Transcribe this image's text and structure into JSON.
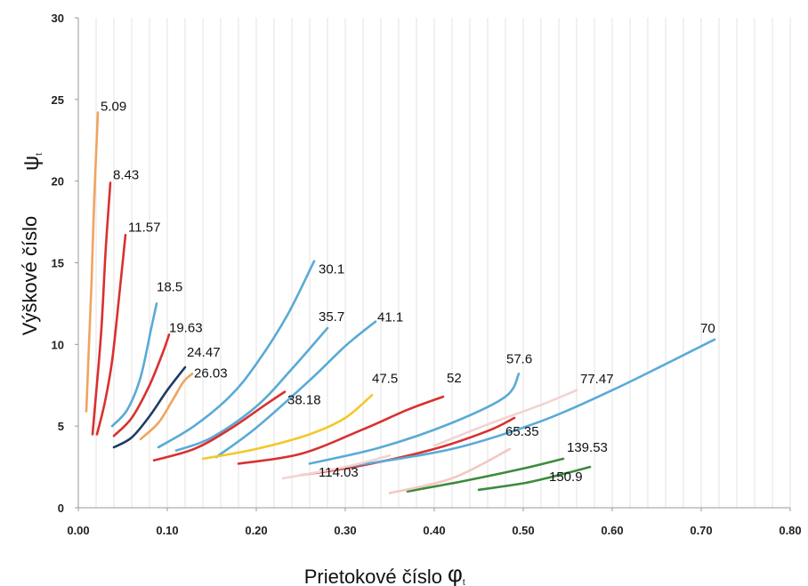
{
  "chart_data": {
    "type": "line",
    "title": "",
    "xlabel": "Prietokové číslo",
    "xlabel_symbol": "φ",
    "xlabel_subscript": "t",
    "ylabel": "Výškové číslo",
    "ylabel_symbol": "ψ",
    "ylabel_subscript": "t",
    "xlim": [
      0,
      0.8
    ],
    "ylim": [
      0,
      30
    ],
    "x_ticks": [
      "0.00",
      "0.10",
      "0.20",
      "0.30",
      "0.40",
      "0.50",
      "0.60",
      "0.70",
      "0.80"
    ],
    "y_ticks": [
      "0",
      "5",
      "10",
      "15",
      "20",
      "25",
      "30"
    ],
    "grid": "vertical",
    "legend": "none",
    "series": [
      {
        "name": "5.09",
        "color": "#f0a460",
        "points": [
          [
            0.009,
            5.9
          ],
          [
            0.012,
            10
          ],
          [
            0.015,
            14
          ],
          [
            0.018,
            19
          ],
          [
            0.022,
            24.2
          ]
        ]
      },
      {
        "name": "8.43",
        "color": "#d93030",
        "points": [
          [
            0.016,
            4.5
          ],
          [
            0.02,
            7
          ],
          [
            0.026,
            11
          ],
          [
            0.031,
            16
          ],
          [
            0.036,
            19.9
          ]
        ]
      },
      {
        "name": "11.57",
        "color": "#d93030",
        "points": [
          [
            0.021,
            4.5
          ],
          [
            0.03,
            6.5
          ],
          [
            0.038,
            9
          ],
          [
            0.046,
            13
          ],
          [
            0.053,
            16.7
          ]
        ]
      },
      {
        "name": "18.5",
        "color": "#5aaad6",
        "points": [
          [
            0.038,
            5
          ],
          [
            0.055,
            6
          ],
          [
            0.07,
            8
          ],
          [
            0.082,
            11
          ],
          [
            0.088,
            12.5
          ]
        ]
      },
      {
        "name": "19.63",
        "color": "#d93030",
        "points": [
          [
            0.04,
            4.4
          ],
          [
            0.06,
            5.5
          ],
          [
            0.08,
            7.5
          ],
          [
            0.095,
            9.5
          ],
          [
            0.102,
            10.6
          ]
        ]
      },
      {
        "name": "24.47",
        "color": "#1e3b63",
        "points": [
          [
            0.04,
            3.7
          ],
          [
            0.06,
            4.3
          ],
          [
            0.08,
            5.6
          ],
          [
            0.1,
            7.2
          ],
          [
            0.12,
            8.6
          ]
        ]
      },
      {
        "name": "26.03",
        "color": "#f0a460",
        "points": [
          [
            0.07,
            4.2
          ],
          [
            0.09,
            5.2
          ],
          [
            0.105,
            6.5
          ],
          [
            0.118,
            7.7
          ],
          [
            0.128,
            8.2
          ]
        ]
      },
      {
        "name": "30.1",
        "color": "#5aaad6",
        "points": [
          [
            0.09,
            3.7
          ],
          [
            0.13,
            5
          ],
          [
            0.17,
            6.8
          ],
          [
            0.2,
            8.8
          ],
          [
            0.235,
            11.8
          ],
          [
            0.265,
            15.1
          ]
        ]
      },
      {
        "name": "35.7",
        "color": "#5aaad6",
        "points": [
          [
            0.11,
            3.5
          ],
          [
            0.15,
            4.3
          ],
          [
            0.2,
            6.2
          ],
          [
            0.24,
            8.5
          ],
          [
            0.28,
            11
          ]
        ]
      },
      {
        "name": "38.18",
        "color": "#d93030",
        "points": [
          [
            0.085,
            2.9
          ],
          [
            0.13,
            3.6
          ],
          [
            0.17,
            4.8
          ],
          [
            0.21,
            6.3
          ],
          [
            0.232,
            7.1
          ]
        ]
      },
      {
        "name": "41.1",
        "color": "#5aaad6",
        "points": [
          [
            0.155,
            3.1
          ],
          [
            0.2,
            4.9
          ],
          [
            0.26,
            7.8
          ],
          [
            0.3,
            9.9
          ],
          [
            0.334,
            11.4
          ]
        ]
      },
      {
        "name": "47.5",
        "color": "#f4c828",
        "points": [
          [
            0.14,
            3
          ],
          [
            0.2,
            3.6
          ],
          [
            0.26,
            4.5
          ],
          [
            0.3,
            5.5
          ],
          [
            0.33,
            6.9
          ]
        ]
      },
      {
        "name": "52",
        "color": "#d93030",
        "points": [
          [
            0.18,
            2.7
          ],
          [
            0.25,
            3.3
          ],
          [
            0.32,
            4.8
          ],
          [
            0.37,
            6
          ],
          [
            0.41,
            6.8
          ]
        ]
      },
      {
        "name": "57.6",
        "color": "#5aaad6",
        "points": [
          [
            0.26,
            2.7
          ],
          [
            0.34,
            3.7
          ],
          [
            0.42,
            5.2
          ],
          [
            0.48,
            6.8
          ],
          [
            0.495,
            8.2
          ]
        ]
      },
      {
        "name": "65.35",
        "color": "#d93030",
        "points": [
          [
            0.25,
            2
          ],
          [
            0.32,
            2.6
          ],
          [
            0.4,
            3.6
          ],
          [
            0.46,
            4.7
          ],
          [
            0.49,
            5.5
          ]
        ]
      },
      {
        "name": "70",
        "color": "#5aaad6",
        "points": [
          [
            0.3,
            2.5
          ],
          [
            0.42,
            3.6
          ],
          [
            0.52,
            5.3
          ],
          [
            0.6,
            7.2
          ],
          [
            0.66,
            8.8
          ],
          [
            0.715,
            10.3
          ]
        ]
      },
      {
        "name": "77.47",
        "color": "#f0d4d0",
        "points": [
          [
            0.4,
            3.8
          ],
          [
            0.46,
            5.1
          ],
          [
            0.52,
            6.3
          ],
          [
            0.56,
            7.2
          ]
        ]
      },
      {
        "name": "114.03",
        "color": "#f0d4d0",
        "points": [
          [
            0.23,
            1.8
          ],
          [
            0.3,
            2.5
          ],
          [
            0.35,
            3.2
          ]
        ]
      },
      {
        "name": "139.53",
        "color": "#3c8a3c",
        "points": [
          [
            0.37,
            1
          ],
          [
            0.43,
            1.6
          ],
          [
            0.5,
            2.4
          ],
          [
            0.545,
            3
          ]
        ]
      },
      {
        "name": "150.9",
        "color": "#3c8a3c",
        "points": [
          [
            0.45,
            1.1
          ],
          [
            0.5,
            1.5
          ],
          [
            0.54,
            2
          ],
          [
            0.575,
            2.5
          ]
        ]
      },
      {
        "name": "",
        "color": "#f4c7c0",
        "points": [
          [
            0.35,
            0.9
          ],
          [
            0.42,
            1.8
          ],
          [
            0.485,
            3.6
          ]
        ]
      }
    ]
  }
}
